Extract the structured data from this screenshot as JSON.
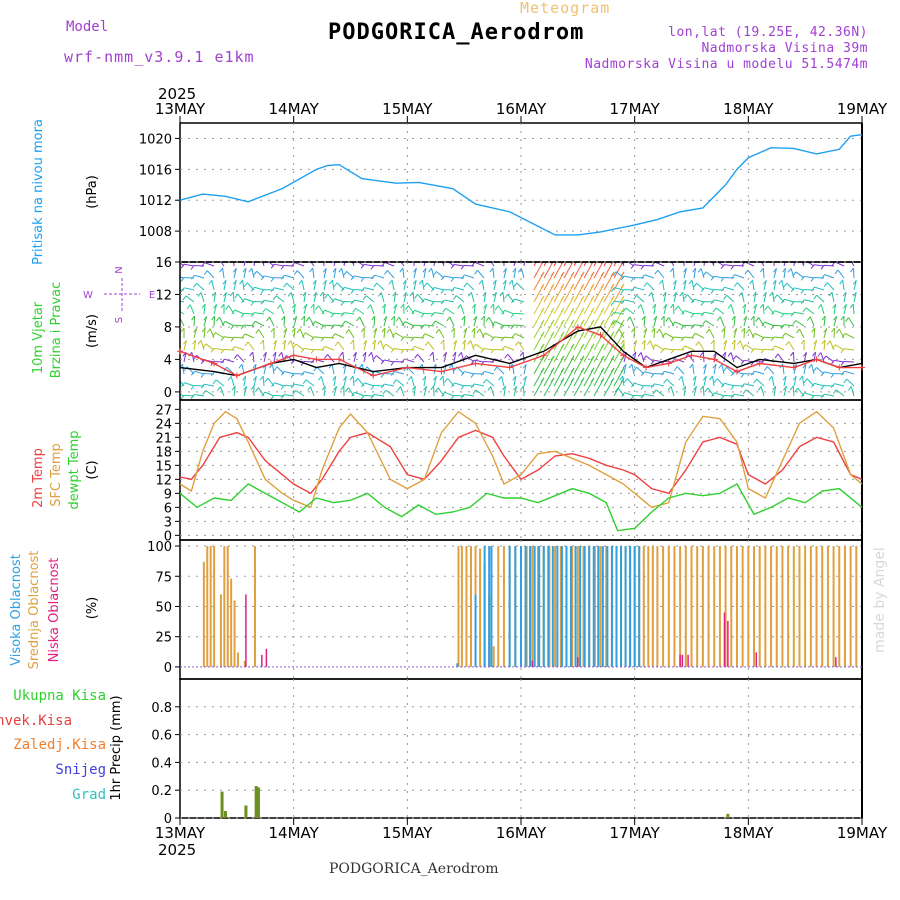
{
  "header": {
    "model_heading": "Model",
    "model_version": "wrf-nmm_v3.9.1 e1km",
    "meteogram_label": "Meteogram",
    "station": "PODGORICA_Aerodrom",
    "coords": "lon,lat (19.25E, 42.36N)",
    "elevation": "Nadmorska Visina 39m",
    "model_elevation": "Nadmorska Visina u modelu 51.5474m",
    "year_top": "2025"
  },
  "footer": {
    "station": "PODGORICA_Aerodrom",
    "year_bottom": "2025",
    "credit": "made by Angel"
  },
  "x_axis": {
    "ticks": [
      "13MAY",
      "14MAY",
      "15MAY",
      "16MAY",
      "17MAY",
      "18MAY",
      "19MAY"
    ]
  },
  "colors": {
    "pressure": "#1ea0f0",
    "temp2m": "#f04040",
    "sfc_temp": "#e0a040",
    "dewpoint": "#30d030",
    "gust": "#f04040",
    "wind_speed": "#000000",
    "high_cloud": "#30a0e0",
    "mid_cloud": "#e0a040",
    "low_cloud": "#e02080",
    "total_precip": "#6a9020",
    "conv_precip": "#e04040",
    "frozen_precip": "#f08030",
    "snow": "#4040e0",
    "hail": "#30c0c0"
  },
  "chart_data": [
    {
      "type": "line",
      "panel": "pressure",
      "ylabel": [
        "Pritisak na nivou mora",
        "(hPa)"
      ],
      "ylim": [
        1004,
        1022
      ],
      "yticks": [
        1008,
        1012,
        1016,
        1020
      ],
      "x_units": "days since 13MAY 00UTC",
      "xlim": [
        0,
        6
      ],
      "grid": true,
      "series": [
        {
          "name": "Pritisak na nivou mora",
          "color": "#1ea0f0",
          "x": [
            0,
            0.2,
            0.4,
            0.6,
            0.9,
            1.2,
            1.3,
            1.4,
            1.6,
            1.9,
            2.1,
            2.4,
            2.6,
            2.9,
            3.1,
            3.3,
            3.5,
            3.7,
            3.9,
            4.0,
            4.2,
            4.4,
            4.6,
            4.8,
            4.9,
            5.0,
            5.2,
            5.4,
            5.6,
            5.8,
            5.9,
            6.0
          ],
          "y": [
            1012,
            1012.8,
            1012.5,
            1011.8,
            1013.5,
            1016,
            1016.5,
            1016.6,
            1014.8,
            1014.2,
            1014.3,
            1013.5,
            1011.5,
            1010.5,
            1009,
            1007.5,
            1007.5,
            1007.9,
            1008.5,
            1008.8,
            1009.5,
            1010.5,
            1011,
            1014,
            1016,
            1017.5,
            1018.8,
            1018.7,
            1018,
            1018.6,
            1020.3,
            1020.5
          ]
        }
      ]
    },
    {
      "type": "line",
      "panel": "wind",
      "ylabel": [
        "10m Vjetar",
        "Brzina i Pravac",
        "(m/s)"
      ],
      "ylim": [
        -1,
        16
      ],
      "yticks": [
        0,
        4,
        8,
        12,
        16
      ],
      "compass": [
        "N",
        "S",
        "W",
        "E"
      ],
      "x_units": "days since 13MAY 00UTC",
      "xlim": [
        0,
        6
      ],
      "grid": true,
      "series": [
        {
          "name": "brzina",
          "color": "#000000",
          "x": [
            0,
            0.3,
            0.5,
            0.8,
            1.0,
            1.2,
            1.4,
            1.7,
            2.0,
            2.3,
            2.6,
            2.9,
            3.2,
            3.5,
            3.7,
            3.9,
            4.1,
            4.3,
            4.5,
            4.7,
            4.9,
            5.1,
            5.4,
            5.6,
            5.8,
            6.0
          ],
          "y": [
            3,
            2.5,
            2,
            3.5,
            4,
            3,
            3.5,
            2.5,
            3,
            3,
            4.5,
            3.5,
            5,
            7.5,
            8,
            5,
            3,
            4,
            5,
            5,
            3,
            4,
            3.5,
            4,
            3,
            3.5
          ]
        },
        {
          "name": "udari",
          "color": "#f04040",
          "x": [
            0,
            0.3,
            0.5,
            0.8,
            1.0,
            1.2,
            1.4,
            1.7,
            2.0,
            2.3,
            2.6,
            2.9,
            3.2,
            3.5,
            3.7,
            3.9,
            4.1,
            4.3,
            4.5,
            4.7,
            4.9,
            5.1,
            5.4,
            5.6,
            5.8,
            6.0
          ],
          "y": [
            5,
            3.5,
            2,
            3.5,
            4.5,
            4,
            4,
            2,
            3,
            2.5,
            3.5,
            3,
            4.5,
            8,
            7,
            4.5,
            3,
            3.5,
            4.5,
            4,
            2.5,
            3.5,
            3,
            4,
            3,
            3
          ]
        }
      ]
    },
    {
      "type": "line",
      "panel": "temperature",
      "ylabel": [
        "2m Temp",
        "SFC Temp",
        "dewpt Temp",
        "(C)"
      ],
      "ylim": [
        -1,
        29
      ],
      "yticks": [
        0,
        3,
        6,
        9,
        12,
        15,
        18,
        21,
        24,
        27
      ],
      "x_units": "days since 13MAY 00UTC",
      "xlim": [
        0,
        6
      ],
      "grid": true,
      "series": [
        {
          "name": "2m Temp",
          "color": "#f04040",
          "x": [
            0,
            0.1,
            0.2,
            0.35,
            0.5,
            0.6,
            0.75,
            0.9,
            1.0,
            1.15,
            1.25,
            1.4,
            1.5,
            1.65,
            1.85,
            2.0,
            2.15,
            2.3,
            2.45,
            2.6,
            2.75,
            2.85,
            3.0,
            3.15,
            3.3,
            3.45,
            3.6,
            3.75,
            3.9,
            4.0,
            4.15,
            4.3,
            4.45,
            4.6,
            4.75,
            4.9,
            5.0,
            5.15,
            5.3,
            5.45,
            5.6,
            5.75,
            5.9,
            6.0
          ],
          "y": [
            12.5,
            12,
            15,
            21,
            22,
            21,
            16,
            13,
            11,
            9,
            12,
            18,
            21,
            22,
            19,
            13,
            12,
            16,
            21,
            22.5,
            21,
            17,
            12,
            14,
            17,
            17.5,
            16.5,
            15,
            14,
            13,
            10,
            9,
            14,
            20,
            21,
            19.5,
            13,
            11,
            14,
            19,
            21,
            20,
            13,
            12
          ]
        },
        {
          "name": "SFC Temp",
          "color": "#e0a040",
          "x": [
            0,
            0.1,
            0.2,
            0.3,
            0.4,
            0.5,
            0.6,
            0.75,
            0.9,
            1.0,
            1.15,
            1.25,
            1.4,
            1.5,
            1.65,
            1.85,
            2.0,
            2.15,
            2.3,
            2.45,
            2.6,
            2.75,
            2.85,
            3.0,
            3.15,
            3.3,
            3.45,
            3.6,
            3.75,
            3.9,
            4.0,
            4.15,
            4.3,
            4.45,
            4.6,
            4.75,
            4.9,
            5.0,
            5.15,
            5.3,
            5.45,
            5.6,
            5.75,
            5.9,
            6.0
          ],
          "y": [
            11,
            9.5,
            18,
            24,
            26.5,
            25,
            20,
            12,
            9,
            7.5,
            6,
            14,
            23,
            26,
            22,
            12,
            10,
            12,
            22,
            26.5,
            24,
            17,
            11,
            13,
            17.5,
            18,
            16.5,
            15,
            13,
            11,
            9,
            6,
            7,
            20,
            25.5,
            25,
            20,
            10,
            8,
            16,
            24,
            26.5,
            23,
            13,
            11
          ]
        },
        {
          "name": "dewpt Temp",
          "color": "#30d030",
          "x": [
            0,
            0.15,
            0.3,
            0.45,
            0.6,
            0.75,
            0.9,
            1.05,
            1.2,
            1.35,
            1.5,
            1.65,
            1.8,
            1.95,
            2.1,
            2.25,
            2.4,
            2.55,
            2.7,
            2.85,
            3.0,
            3.15,
            3.3,
            3.45,
            3.6,
            3.75,
            3.85,
            4.0,
            4.15,
            4.3,
            4.45,
            4.6,
            4.75,
            4.9,
            5.05,
            5.2,
            5.35,
            5.5,
            5.65,
            5.8,
            6.0
          ],
          "y": [
            9,
            6,
            8,
            7.5,
            11,
            9,
            7,
            5,
            8,
            7,
            7.5,
            9,
            6,
            4,
            6.5,
            4.5,
            5,
            6,
            9,
            8,
            8,
            7,
            8.5,
            10,
            9,
            7,
            1,
            1.5,
            5,
            8,
            9,
            8.5,
            9,
            11,
            4.5,
            6,
            8,
            7,
            9.5,
            10,
            6
          ]
        }
      ]
    },
    {
      "type": "bar",
      "panel": "cloud",
      "ylabel": [
        "Visoka Oblacnost",
        "Srednja Oblacnost",
        "Niska Oblacnost",
        "(%)"
      ],
      "ylim": [
        -10,
        105
      ],
      "yticks": [
        0,
        25,
        50,
        75,
        100
      ],
      "x_units": "days since 13MAY 00UTC",
      "xlim": [
        0,
        6
      ],
      "grid": true,
      "series": [
        {
          "name": "Srednja Oblacnost",
          "color": "#e0a040",
          "x": [
            0.21,
            0.24,
            0.27,
            0.3,
            0.36,
            0.39,
            0.42,
            0.45,
            0.48,
            0.51,
            0.57,
            0.66,
            2.45,
            2.48,
            2.52,
            2.56,
            2.6,
            2.64,
            2.68,
            2.72,
            2.76,
            2.8,
            2.85,
            2.9,
            2.95,
            3.0,
            3.05,
            3.1,
            3.15,
            3.2,
            3.25,
            3.3,
            3.35,
            3.4,
            3.45,
            3.5,
            3.55,
            3.6,
            3.65,
            3.7,
            3.75,
            3.8,
            3.84,
            3.88,
            3.92,
            3.96,
            4.0,
            4.04,
            4.08,
            4.12,
            4.16,
            4.2,
            4.25,
            4.3,
            4.35,
            4.4,
            4.45,
            4.5,
            4.55,
            4.6,
            4.65,
            4.7,
            4.75,
            4.8,
            4.85,
            4.9,
            4.95,
            5.0,
            5.05,
            5.1,
            5.15,
            5.2,
            5.25,
            5.3,
            5.35,
            5.4,
            5.45,
            5.5,
            5.55,
            5.6,
            5.65,
            5.7,
            5.75,
            5.8,
            5.85,
            5.9,
            5.95
          ],
          "y": [
            87,
            100,
            100,
            100,
            60,
            100,
            100,
            73,
            55,
            12,
            5,
            100,
            100,
            100,
            100,
            100,
            100,
            98,
            85,
            60,
            17,
            100,
            100,
            100,
            100,
            100,
            100,
            100,
            100,
            100,
            100,
            100,
            100,
            100,
            100,
            100,
            100,
            100,
            100,
            100,
            100,
            100,
            100,
            100,
            100,
            100,
            100,
            100,
            100,
            100,
            100,
            100,
            100,
            100,
            100,
            100,
            100,
            100,
            100,
            100,
            100,
            100,
            100,
            100,
            100,
            100,
            100,
            100,
            100,
            100,
            100,
            100,
            100,
            100,
            100,
            100,
            100,
            100,
            100,
            100,
            100,
            100,
            100,
            100,
            100,
            100,
            100
          ]
        },
        {
          "name": "Visoka Oblacnost",
          "color": "#30a0e0",
          "x": [
            2.44,
            2.6,
            2.68,
            2.72,
            2.74,
            2.9,
            2.95,
            3.0,
            3.04,
            3.08,
            3.12,
            3.16,
            3.2,
            3.24,
            3.28,
            3.32,
            3.36,
            3.4,
            3.44,
            3.48,
            3.52,
            3.56,
            3.6,
            3.64,
            3.68,
            3.72,
            3.76,
            3.8,
            3.84,
            3.88,
            3.92,
            3.96,
            4.0,
            4.04
          ],
          "y": [
            3,
            60,
            100,
            100,
            100,
            100,
            100,
            100,
            100,
            100,
            100,
            100,
            100,
            100,
            100,
            100,
            100,
            100,
            100,
            100,
            100,
            100,
            100,
            100,
            100,
            100,
            100,
            100,
            100,
            100,
            100,
            100,
            100,
            100
          ]
        },
        {
          "name": "Niska Oblacnost",
          "color": "#e02080",
          "x": [
            0.58,
            0.72,
            0.76,
            3.1,
            3.5,
            4.4,
            4.42,
            4.47,
            4.79,
            4.82,
            5.07,
            5.77
          ],
          "y": [
            60,
            10,
            15,
            5,
            8,
            10,
            10,
            10,
            45,
            38,
            12,
            8
          ]
        }
      ]
    },
    {
      "type": "bar",
      "panel": "precip",
      "ylabel": [
        "1hr Precip (mm)"
      ],
      "legend": [
        "Ukupna Kisa",
        "Konvek.Kisa",
        "Zaledj.Kisa",
        "Snijeg",
        "Grad"
      ],
      "ylim": [
        0,
        1.0
      ],
      "yticks": [
        0,
        0.2,
        0.4,
        0.6,
        0.8
      ],
      "x_units": "days since 13MAY 00UTC",
      "xlim": [
        0,
        6
      ],
      "grid": true,
      "series": [
        {
          "name": "Ukupna Kisa",
          "color": "#6a9020",
          "x": [
            0.37,
            0.4,
            0.58,
            0.67,
            0.69,
            4.82
          ],
          "y": [
            0.19,
            0.05,
            0.09,
            0.23,
            0.22,
            0.03
          ]
        }
      ]
    }
  ]
}
